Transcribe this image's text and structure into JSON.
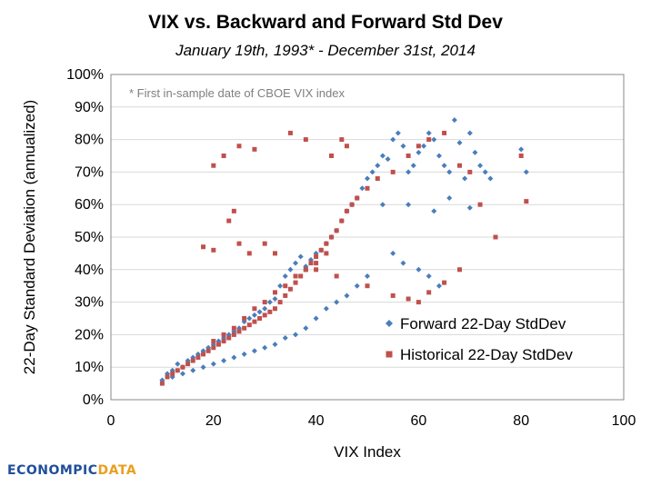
{
  "chart_data": {
    "type": "scatter",
    "title": "VIX vs. Backward and Forward Std Dev",
    "subtitle": "January 19th, 1993* - December 31st, 2014",
    "annotation": "* First in-sample date of CBOE VIX index",
    "xlabel": "VIX Index",
    "ylabel": "22-Day Standard Deviation (annualized)",
    "xlim": [
      0,
      100
    ],
    "ylim": [
      0,
      1.0
    ],
    "xticks": [
      "0",
      "20",
      "40",
      "60",
      "80",
      "100"
    ],
    "yticks": [
      "0%",
      "10%",
      "20%",
      "30%",
      "40%",
      "50%",
      "60%",
      "70%",
      "80%",
      "90%",
      "100%"
    ],
    "grid": "horizontal",
    "legend_position": "right-middle",
    "series": [
      {
        "name": "Forward 22-Day StdDev",
        "color": "#4a7ebb",
        "marker": "diamond",
        "points": [
          [
            10,
            0.06
          ],
          [
            11,
            0.08
          ],
          [
            12,
            0.09
          ],
          [
            13,
            0.11
          ],
          [
            14,
            0.1
          ],
          [
            15,
            0.12
          ],
          [
            16,
            0.13
          ],
          [
            17,
            0.14
          ],
          [
            18,
            0.15
          ],
          [
            19,
            0.16
          ],
          [
            20,
            0.17
          ],
          [
            21,
            0.18
          ],
          [
            22,
            0.19
          ],
          [
            23,
            0.2
          ],
          [
            24,
            0.21
          ],
          [
            25,
            0.22
          ],
          [
            26,
            0.24
          ],
          [
            27,
            0.25
          ],
          [
            28,
            0.26
          ],
          [
            29,
            0.27
          ],
          [
            30,
            0.28
          ],
          [
            31,
            0.3
          ],
          [
            32,
            0.31
          ],
          [
            33,
            0.35
          ],
          [
            34,
            0.38
          ],
          [
            35,
            0.4
          ],
          [
            36,
            0.42
          ],
          [
            37,
            0.44
          ],
          [
            38,
            0.41
          ],
          [
            39,
            0.43
          ],
          [
            40,
            0.45
          ],
          [
            41,
            0.46
          ],
          [
            42,
            0.48
          ],
          [
            43,
            0.5
          ],
          [
            44,
            0.52
          ],
          [
            45,
            0.55
          ],
          [
            46,
            0.58
          ],
          [
            47,
            0.6
          ],
          [
            48,
            0.62
          ],
          [
            49,
            0.65
          ],
          [
            50,
            0.68
          ],
          [
            51,
            0.7
          ],
          [
            52,
            0.72
          ],
          [
            53,
            0.75
          ],
          [
            54,
            0.74
          ],
          [
            55,
            0.8
          ],
          [
            56,
            0.82
          ],
          [
            57,
            0.78
          ],
          [
            58,
            0.7
          ],
          [
            59,
            0.72
          ],
          [
            60,
            0.76
          ],
          [
            61,
            0.78
          ],
          [
            62,
            0.82
          ],
          [
            63,
            0.8
          ],
          [
            64,
            0.75
          ],
          [
            65,
            0.72
          ],
          [
            66,
            0.7
          ],
          [
            67,
            0.86
          ],
          [
            68,
            0.79
          ],
          [
            69,
            0.68
          ],
          [
            70,
            0.82
          ],
          [
            71,
            0.76
          ],
          [
            72,
            0.72
          ],
          [
            73,
            0.7
          ],
          [
            74,
            0.68
          ],
          [
            80,
            0.77
          ],
          [
            81,
            0.7
          ],
          [
            55,
            0.45
          ],
          [
            57,
            0.42
          ],
          [
            60,
            0.4
          ],
          [
            62,
            0.38
          ],
          [
            64,
            0.35
          ],
          [
            50,
            0.38
          ],
          [
            48,
            0.35
          ],
          [
            46,
            0.32
          ],
          [
            44,
            0.3
          ],
          [
            42,
            0.28
          ],
          [
            40,
            0.25
          ],
          [
            38,
            0.22
          ],
          [
            36,
            0.2
          ],
          [
            34,
            0.19
          ],
          [
            32,
            0.17
          ],
          [
            30,
            0.16
          ],
          [
            28,
            0.15
          ],
          [
            26,
            0.14
          ],
          [
            24,
            0.13
          ],
          [
            22,
            0.12
          ],
          [
            20,
            0.11
          ],
          [
            18,
            0.1
          ],
          [
            16,
            0.09
          ],
          [
            14,
            0.08
          ],
          [
            12,
            0.07
          ],
          [
            53,
            0.6
          ],
          [
            58,
            0.6
          ],
          [
            63,
            0.58
          ],
          [
            66,
            0.62
          ],
          [
            70,
            0.59
          ]
        ]
      },
      {
        "name": "Historical 22-Day StdDev",
        "color": "#c0504d",
        "marker": "square",
        "points": [
          [
            10,
            0.05
          ],
          [
            11,
            0.07
          ],
          [
            12,
            0.08
          ],
          [
            13,
            0.09
          ],
          [
            14,
            0.1
          ],
          [
            15,
            0.11
          ],
          [
            16,
            0.12
          ],
          [
            17,
            0.13
          ],
          [
            18,
            0.14
          ],
          [
            19,
            0.15
          ],
          [
            20,
            0.16
          ],
          [
            21,
            0.17
          ],
          [
            22,
            0.18
          ],
          [
            23,
            0.19
          ],
          [
            24,
            0.2
          ],
          [
            25,
            0.21
          ],
          [
            26,
            0.22
          ],
          [
            27,
            0.23
          ],
          [
            28,
            0.24
          ],
          [
            29,
            0.25
          ],
          [
            30,
            0.26
          ],
          [
            31,
            0.27
          ],
          [
            32,
            0.28
          ],
          [
            33,
            0.3
          ],
          [
            34,
            0.32
          ],
          [
            35,
            0.34
          ],
          [
            36,
            0.36
          ],
          [
            37,
            0.38
          ],
          [
            38,
            0.4
          ],
          [
            39,
            0.42
          ],
          [
            40,
            0.44
          ],
          [
            41,
            0.46
          ],
          [
            42,
            0.48
          ],
          [
            43,
            0.5
          ],
          [
            44,
            0.52
          ],
          [
            45,
            0.55
          ],
          [
            46,
            0.58
          ],
          [
            47,
            0.6
          ],
          [
            48,
            0.62
          ],
          [
            50,
            0.65
          ],
          [
            52,
            0.68
          ],
          [
            55,
            0.7
          ],
          [
            58,
            0.75
          ],
          [
            60,
            0.78
          ],
          [
            62,
            0.8
          ],
          [
            65,
            0.82
          ],
          [
            68,
            0.72
          ],
          [
            70,
            0.7
          ],
          [
            72,
            0.6
          ],
          [
            75,
            0.5
          ],
          [
            80,
            0.75
          ],
          [
            81,
            0.61
          ],
          [
            20,
            0.18
          ],
          [
            22,
            0.2
          ],
          [
            24,
            0.22
          ],
          [
            26,
            0.25
          ],
          [
            28,
            0.28
          ],
          [
            30,
            0.3
          ],
          [
            32,
            0.33
          ],
          [
            34,
            0.35
          ],
          [
            36,
            0.38
          ],
          [
            38,
            0.4
          ],
          [
            40,
            0.42
          ],
          [
            20,
            0.72
          ],
          [
            22,
            0.75
          ],
          [
            25,
            0.78
          ],
          [
            28,
            0.77
          ],
          [
            35,
            0.82
          ],
          [
            38,
            0.8
          ],
          [
            23,
            0.55
          ],
          [
            24,
            0.58
          ],
          [
            25,
            0.48
          ],
          [
            27,
            0.45
          ],
          [
            18,
            0.47
          ],
          [
            20,
            0.46
          ],
          [
            45,
            0.8
          ],
          [
            46,
            0.78
          ],
          [
            43,
            0.75
          ],
          [
            30,
            0.48
          ],
          [
            32,
            0.45
          ],
          [
            42,
            0.45
          ],
          [
            40,
            0.4
          ],
          [
            44,
            0.38
          ],
          [
            50,
            0.35
          ],
          [
            55,
            0.32
          ],
          [
            58,
            0.31
          ],
          [
            60,
            0.3
          ],
          [
            62,
            0.33
          ],
          [
            65,
            0.36
          ],
          [
            68,
            0.4
          ]
        ]
      }
    ]
  },
  "brand": {
    "part1": "ECONOMPIC",
    "part2": "DATA"
  }
}
